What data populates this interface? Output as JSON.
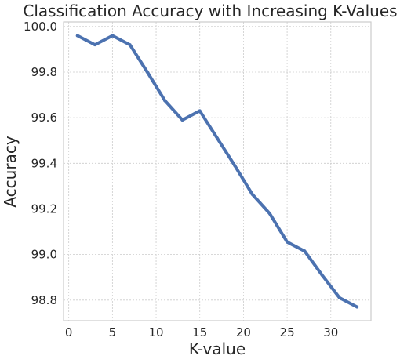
{
  "chart_data": {
    "type": "line",
    "title": "Classification Accuracy with Increasing K-Values",
    "xlabel": "K-value",
    "ylabel": "Accuracy",
    "xlim": [
      -0.6,
      34.6
    ],
    "ylim": [
      98.71,
      100.02
    ],
    "xticks": [
      0,
      5,
      10,
      15,
      20,
      25,
      30
    ],
    "yticks": [
      98.8,
      99.0,
      99.2,
      99.4,
      99.6,
      99.8,
      100.0
    ],
    "ytick_format": 1,
    "grid": true,
    "line_color": "#4c72b0",
    "series": [
      {
        "x": [
          1,
          3,
          5,
          7,
          9,
          11,
          13,
          15,
          17,
          19,
          21,
          23,
          25,
          27,
          29,
          31,
          33
        ],
        "y": [
          99.96,
          99.92,
          99.96,
          99.92,
          99.8,
          99.675,
          99.59,
          99.63,
          99.51,
          99.39,
          99.265,
          99.18,
          99.055,
          99.015,
          98.91,
          98.81,
          98.77
        ]
      }
    ]
  }
}
